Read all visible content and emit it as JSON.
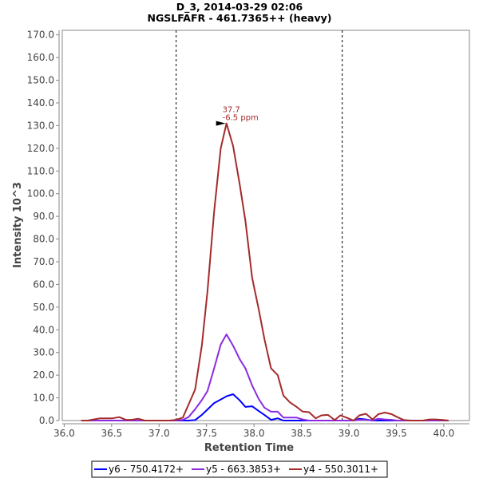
{
  "chart_data": {
    "type": "line",
    "title": "D_3, 2014-03-29 02:06",
    "subtitle": "NGSLFAFR - 461.7365++ (heavy)",
    "xlabel": "Retention Time",
    "ylabel": "Intensity 10^3",
    "xlim": [
      35.98,
      40.27
    ],
    "ylim": [
      0,
      172
    ],
    "xticks": [
      "36.0",
      "36.5",
      "37.0",
      "37.5",
      "38.0",
      "38.5",
      "39.0",
      "39.5",
      "40.0"
    ],
    "yticks": [
      "0.0",
      "10.0",
      "20.0",
      "30.0",
      "40.0",
      "50.0",
      "60.0",
      "70.0",
      "80.0",
      "90.0",
      "100.0",
      "110.0",
      "120.0",
      "130.0",
      "140.0",
      "150.0",
      "160.0",
      "170.0"
    ],
    "grid": false,
    "legend_position": "bottom",
    "integration_boundaries": [
      37.18,
      38.93
    ],
    "x": [
      36.18,
      36.25,
      36.31,
      36.38,
      36.45,
      36.51,
      36.58,
      36.65,
      36.71,
      36.78,
      36.85,
      36.91,
      36.98,
      37.05,
      37.11,
      37.18,
      37.25,
      37.31,
      37.38,
      37.45,
      37.51,
      37.58,
      37.65,
      37.71,
      37.78,
      37.85,
      37.91,
      37.98,
      38.05,
      38.11,
      38.18,
      38.25,
      38.31,
      38.38,
      38.45,
      38.51,
      38.58,
      38.65,
      38.71,
      38.78,
      38.85,
      38.91,
      38.98,
      39.05,
      39.11,
      39.18,
      39.25,
      39.31,
      39.38,
      39.45,
      39.51,
      39.58,
      39.65,
      39.71,
      39.78,
      39.85,
      39.91,
      39.98,
      40.05
    ],
    "series": [
      {
        "name": "y6 - 750.4172+",
        "color": "#0000ff",
        "values": [
          0,
          0,
          0,
          0,
          0,
          0,
          0,
          0,
          0,
          0,
          0,
          0,
          0,
          0,
          0,
          0,
          0,
          0,
          0.2,
          2.5,
          4.9,
          7.7,
          9.3,
          10.7,
          11.6,
          8.9,
          6.0,
          6.3,
          4.2,
          2.5,
          0.3,
          1.0,
          0,
          0,
          0,
          0,
          0,
          0,
          0,
          0,
          0,
          0,
          0,
          0,
          0.8,
          0.5,
          0,
          0,
          0,
          0,
          0,
          0,
          0,
          0,
          0,
          0,
          0,
          0,
          0
        ]
      },
      {
        "name": "y5 - 663.3853+",
        "color": "#8a2be2",
        "values": [
          0,
          0,
          0,
          0,
          0,
          0,
          0,
          0,
          0,
          0,
          0,
          0,
          0,
          0,
          0,
          0,
          0.3,
          1.5,
          5,
          9,
          13,
          23,
          33.5,
          38,
          33,
          27,
          23,
          15.5,
          9.5,
          5.7,
          3.9,
          3.9,
          1.3,
          1.3,
          1.3,
          0.5,
          0,
          0,
          0,
          0,
          0,
          0,
          0,
          0,
          0.3,
          0.3,
          0,
          0.8,
          0.5,
          0.3,
          0,
          0,
          0,
          0,
          0,
          0,
          0,
          0,
          0
        ]
      },
      {
        "name": "y4 - 550.3011+",
        "color": "#a52a2a",
        "values": [
          0,
          0,
          0.5,
          1,
          1,
          1,
          1.5,
          0.3,
          0.3,
          0.8,
          0,
          0,
          0,
          0,
          0,
          0.3,
          1.3,
          7,
          13.7,
          33,
          57,
          92,
          120,
          131,
          121,
          104,
          88,
          63,
          49,
          36,
          23,
          20,
          11,
          8,
          6,
          4,
          3.7,
          1,
          2.3,
          2.5,
          0.2,
          2.3,
          1.2,
          0,
          2.3,
          3,
          0.5,
          2.8,
          3.5,
          2.8,
          1.5,
          0.2,
          0,
          0,
          0,
          0.5,
          0.5,
          0.3,
          0
        ]
      }
    ],
    "annotation": {
      "rt": "37.7",
      "ppm": "-6.5 ppm",
      "series": 2,
      "x": 37.71,
      "y": 131
    }
  }
}
